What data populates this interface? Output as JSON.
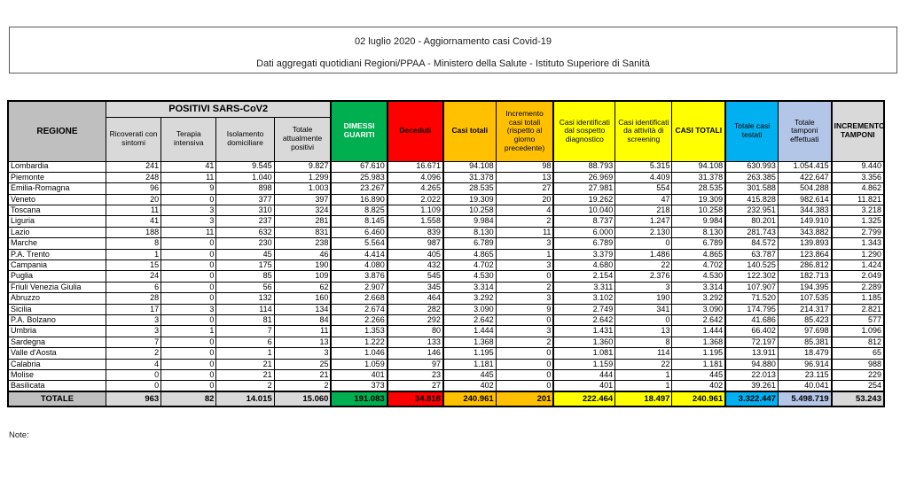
{
  "title": {
    "line1": "02 luglio 2020 - Aggiornamento casi Covid-19",
    "line2": "Dati aggregati quotidiani Regioni/PPAA - Ministero della Salute - Istituto Superiore di Sanità"
  },
  "note_label": "Note:",
  "colors": {
    "green": "#00B050",
    "red": "#FF0000",
    "orange": "#FFC000",
    "yellow": "#FFFF00",
    "cyan": "#00B0F0",
    "periwinkle": "#B4C6E7",
    "gray": "#BFBFBF",
    "graylight": "#D9D9D9"
  },
  "table": {
    "region_header": "REGIONE",
    "group_header": "POSITIVI SARS-CoV2",
    "columns": [
      {
        "key": "ricoverati-con-sintomi",
        "label": "Ricoverati con sintomi"
      },
      {
        "key": "terapia-intensiva",
        "label": "Terapia intensiva"
      },
      {
        "key": "isolamento-domiciliare",
        "label": "Isolamento domiciliare"
      },
      {
        "key": "totale-attualmente-positivi",
        "label": "Totale attualmente positivi"
      },
      {
        "key": "dimessi-guariti",
        "label": "DIMESSI GUARITI",
        "color": "green"
      },
      {
        "key": "deceduti",
        "label": "Deceduti",
        "color": "red"
      },
      {
        "key": "casi-totali",
        "label": "Casi totali",
        "color": "orange"
      },
      {
        "key": "incremento-casi-totali",
        "label": "Incremento casi totali (rispetto al giorno precedente)",
        "color": "orange"
      },
      {
        "key": "casi-identificati-sospetto-diagnostico",
        "label": "Casi identificati dal sospetto diagnostico",
        "color": "yellow"
      },
      {
        "key": "casi-identificati-screening",
        "label": "Casi identificati da attività di screening",
        "color": "yellow"
      },
      {
        "key": "casi-totali-maiuscolo",
        "label": "CASI TOTALI",
        "color": "yellow"
      },
      {
        "key": "totale-casi-testati",
        "label": "Totale casi testati",
        "color": "cyan"
      },
      {
        "key": "totale-tamponi-effettuati",
        "label": "Totale tamponi effettuati",
        "color": "periwinkle"
      },
      {
        "key": "incremento-tamponi",
        "label": "INCREMENTO TAMPONI",
        "color": "graylight"
      }
    ],
    "rows": [
      {
        "name": "Lombardia",
        "values": [
          "241",
          "41",
          "9.545",
          "9.827",
          "67.610",
          "16.671",
          "94.108",
          "98",
          "88.793",
          "5.315",
          "94.108",
          "630.993",
          "1.054.415",
          "9.440"
        ]
      },
      {
        "name": "Piemonte",
        "values": [
          "248",
          "11",
          "1.040",
          "1.299",
          "25.983",
          "4.096",
          "31.378",
          "13",
          "26.969",
          "4.409",
          "31.378",
          "263.385",
          "422.647",
          "3.356"
        ]
      },
      {
        "name": "Emilia-Romagna",
        "values": [
          "96",
          "9",
          "898",
          "1.003",
          "23.267",
          "4.265",
          "28.535",
          "27",
          "27.981",
          "554",
          "28.535",
          "301.588",
          "504.288",
          "4.862"
        ]
      },
      {
        "name": "Veneto",
        "values": [
          "20",
          "0",
          "377",
          "397",
          "16.890",
          "2.022",
          "19.309",
          "20",
          "19.262",
          "47",
          "19.309",
          "415.828",
          "982.614",
          "11.821"
        ]
      },
      {
        "name": "Toscana",
        "values": [
          "11",
          "3",
          "310",
          "324",
          "8.825",
          "1.109",
          "10.258",
          "4",
          "10.040",
          "218",
          "10.258",
          "232.951",
          "344.383",
          "3.218"
        ]
      },
      {
        "name": "Liguria",
        "values": [
          "41",
          "3",
          "237",
          "281",
          "8.145",
          "1.558",
          "9.984",
          "2",
          "8.737",
          "1.247",
          "9.984",
          "80.201",
          "149.910",
          "1.325"
        ]
      },
      {
        "name": "Lazio",
        "values": [
          "188",
          "11",
          "632",
          "831",
          "6.460",
          "839",
          "8.130",
          "11",
          "6.000",
          "2.130",
          "8.130",
          "281.743",
          "343.882",
          "2.799"
        ]
      },
      {
        "name": "Marche",
        "values": [
          "8",
          "0",
          "230",
          "238",
          "5.564",
          "987",
          "6.789",
          "3",
          "6.789",
          "0",
          "6.789",
          "84.572",
          "139.893",
          "1.343"
        ]
      },
      {
        "name": "P.A. Trento",
        "values": [
          "1",
          "0",
          "45",
          "46",
          "4.414",
          "405",
          "4.865",
          "1",
          "3.379",
          "1.486",
          "4.865",
          "63.787",
          "123.864",
          "1.290"
        ]
      },
      {
        "name": "Campania",
        "values": [
          "15",
          "0",
          "175",
          "190",
          "4.080",
          "432",
          "4.702",
          "3",
          "4.680",
          "22",
          "4.702",
          "140.525",
          "286.812",
          "1.424"
        ]
      },
      {
        "name": "Puglia",
        "values": [
          "24",
          "0",
          "85",
          "109",
          "3.876",
          "545",
          "4.530",
          "0",
          "2.154",
          "2.376",
          "4.530",
          "122.302",
          "182.713",
          "2.049"
        ]
      },
      {
        "name": "Friuli Venezia Giulia",
        "values": [
          "6",
          "0",
          "56",
          "62",
          "2.907",
          "345",
          "3.314",
          "2",
          "3.311",
          "3",
          "3.314",
          "107.907",
          "194.395",
          "2.289"
        ]
      },
      {
        "name": "Abruzzo",
        "values": [
          "28",
          "0",
          "132",
          "160",
          "2.668",
          "464",
          "3.292",
          "3",
          "3.102",
          "190",
          "3.292",
          "71.520",
          "107.535",
          "1.185"
        ]
      },
      {
        "name": "Sicilia",
        "values": [
          "17",
          "3",
          "114",
          "134",
          "2.674",
          "282",
          "3.090",
          "9",
          "2.749",
          "341",
          "3.090",
          "174.795",
          "214.317",
          "2.821"
        ]
      },
      {
        "name": "P.A. Bolzano",
        "values": [
          "3",
          "0",
          "81",
          "84",
          "2.266",
          "292",
          "2.642",
          "0",
          "2.642",
          "0",
          "2.642",
          "41.686",
          "85.423",
          "577"
        ]
      },
      {
        "name": "Umbria",
        "values": [
          "3",
          "1",
          "7",
          "11",
          "1.353",
          "80",
          "1.444",
          "3",
          "1.431",
          "13",
          "1.444",
          "66.402",
          "97.698",
          "1.096"
        ]
      },
      {
        "name": "Sardegna",
        "values": [
          "7",
          "0",
          "6",
          "13",
          "1.222",
          "133",
          "1.368",
          "2",
          "1.360",
          "8",
          "1.368",
          "72.197",
          "85.381",
          "812"
        ]
      },
      {
        "name": "Valle d'Aosta",
        "values": [
          "2",
          "0",
          "1",
          "3",
          "1.046",
          "146",
          "1.195",
          "0",
          "1.081",
          "114",
          "1.195",
          "13.911",
          "18.479",
          "65"
        ]
      },
      {
        "name": "Calabria",
        "values": [
          "4",
          "0",
          "21",
          "25",
          "1.059",
          "97",
          "1.181",
          "0",
          "1.159",
          "22",
          "1.181",
          "94.880",
          "96.914",
          "988"
        ]
      },
      {
        "name": "Molise",
        "values": [
          "0",
          "0",
          "21",
          "21",
          "401",
          "23",
          "445",
          "0",
          "444",
          "1",
          "445",
          "22.013",
          "23.115",
          "229"
        ]
      },
      {
        "name": "Basilicata",
        "values": [
          "0",
          "0",
          "2",
          "2",
          "373",
          "27",
          "402",
          "0",
          "401",
          "1",
          "402",
          "39.261",
          "40.041",
          "254"
        ]
      }
    ],
    "total_row": {
      "name": "TOTALE",
      "values": [
        "963",
        "82",
        "14.015",
        "15.060",
        "191.083",
        "34.818",
        "240.961",
        "201",
        "222.464",
        "18.497",
        "240.961",
        "3.322.447",
        "5.498.719",
        "53.243"
      ]
    }
  }
}
